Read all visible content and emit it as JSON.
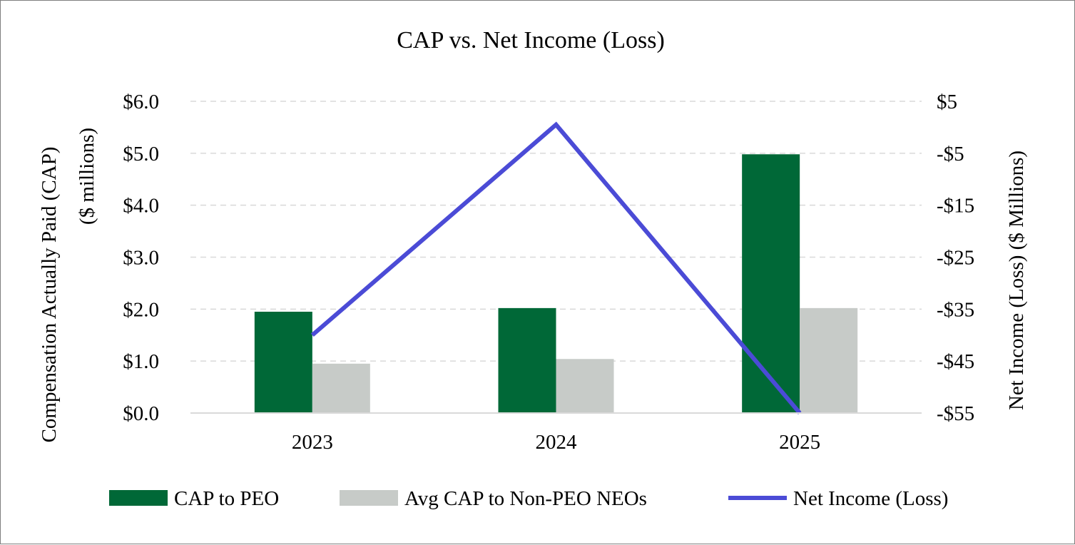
{
  "chart_data": {
    "type": "bar",
    "title": "CAP vs. Net Income (Loss)",
    "categories": [
      "2023",
      "2024",
      "2025"
    ],
    "ylabel": [
      "Compensation Actually Paid (CAP)",
      "($ millions)"
    ],
    "y2label": "Net Income (Loss) ($ Millions)",
    "ylim": [
      0,
      6
    ],
    "y_ticks": [
      0,
      1,
      2,
      3,
      4,
      5,
      6
    ],
    "y_tick_labels": [
      "$0.0",
      "$1.0",
      "$2.0",
      "$3.0",
      "$4.0",
      "$5.0",
      "$6.0"
    ],
    "y2lim": [
      -55,
      5
    ],
    "y2_ticks": [
      -55,
      -45,
      -35,
      -25,
      -15,
      -5,
      5
    ],
    "y2_tick_labels": [
      "-$55",
      "-$45",
      "-$35",
      "-$25",
      "-$15",
      "-$5",
      "$5"
    ],
    "grid": true,
    "legend_position": "bottom",
    "series": [
      {
        "name": "CAP to PEO",
        "type": "bar",
        "axis": "left",
        "color": "#006837",
        "values": [
          1.95,
          2.02,
          4.98
        ]
      },
      {
        "name": "Avg CAP to Non-PEO NEOs",
        "type": "bar",
        "axis": "left",
        "color": "#c7cbc8",
        "values": [
          0.95,
          1.04,
          2.02
        ]
      },
      {
        "name": "Net Income (Loss)",
        "type": "line",
        "axis": "right",
        "color": "#4b4bd6",
        "values": [
          -40,
          0.5,
          -55
        ]
      }
    ]
  }
}
